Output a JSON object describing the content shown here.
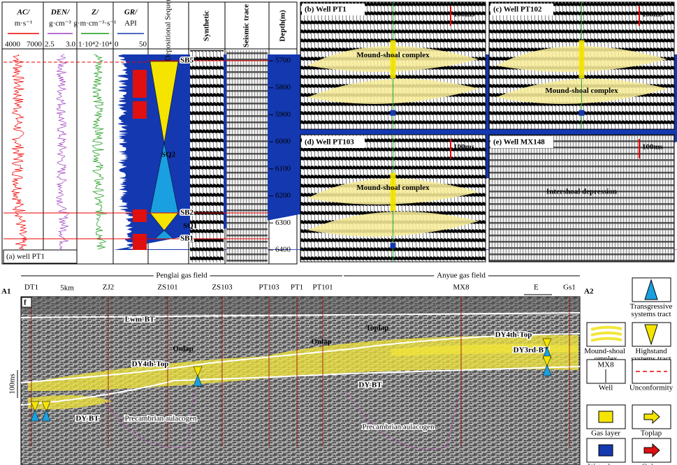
{
  "well_log": {
    "columns": [
      {
        "name": "AC/",
        "unit": "m·s⁻¹",
        "min": "4000",
        "max": "7000"
      },
      {
        "name": "DEN/",
        "unit": "g·cm⁻³",
        "min": "2.5",
        "max": "3.0"
      },
      {
        "name": "Z/",
        "unit": "g·m·cm⁻³·s⁻¹",
        "min": "1·10⁴",
        "max": "2·10⁴"
      },
      {
        "name": "GR/",
        "unit": "API",
        "min": "0",
        "max": "50"
      }
    ],
    "sequence_header": "Depositional Sequence",
    "synthetic": "Synthetic",
    "seismic_trace": "Seismic trace",
    "depth_header": "Depth(m)",
    "depths": [
      5700,
      5800,
      5900,
      6000,
      6100,
      6200,
      6300,
      6400
    ],
    "surfaces": [
      "SB5",
      "SB2",
      "SB1"
    ],
    "sequences": [
      "SQ2",
      "SQ1"
    ],
    "caption": "(a) well PT1"
  },
  "panels": [
    {
      "label": "(b) Well PT1",
      "scale": "100ms",
      "note": "Mound-shoal complex"
    },
    {
      "label": "(c) Well PT102",
      "scale": "100ms",
      "note": "Mound-shoal complex"
    },
    {
      "label": "(d) Well PT103",
      "scale": "100ms",
      "note": "Mound-shoal complex"
    },
    {
      "label": "(e) Well MX148",
      "scale": "100ms",
      "note": "Intershoal depression"
    }
  ],
  "section": {
    "left_field": "Penglai gas field",
    "right_field": "Anyue gas field",
    "left_tag": "A1",
    "right_tag": "A2",
    "scale": "5km",
    "direction": "E",
    "panel": "f",
    "vertical_scale": "100ms",
    "wells": [
      "DT1",
      "ZJ2",
      "ZS101",
      "ZS103",
      "PT103",
      "PT1",
      "PT101",
      "MX8",
      "Gs1"
    ],
    "horizons": [
      "Lwm-BT",
      "DY4th-Top",
      "DY-BT",
      "DY-BT",
      "DY4th-Top",
      "DY3rd-BT"
    ],
    "annotations": [
      "Precambrian aulacogen",
      "Precambrian aulacogen"
    ],
    "features": [
      "Toplap",
      "Onlap",
      "Onlap"
    ]
  },
  "legend": [
    "Transgressive systems tract",
    "Highstand systems tract",
    "Mound-shoal complex",
    "Well",
    "MX8",
    "Unconformity",
    "Gas layer",
    "Toplap",
    "Water layer",
    "Onlap"
  ]
}
